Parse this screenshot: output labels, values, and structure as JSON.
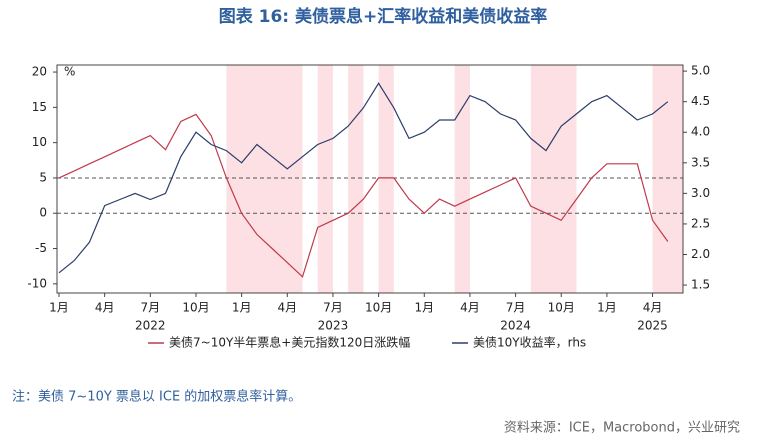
{
  "chart_data": {
    "type": "line",
    "title": "图表 16: 美债票息+汇率收益和美债收益率",
    "note": "注：美债 7~10Y 票息以 ICE 的加权票息率计算。",
    "source": "资料来源：ICE，Macrobond，兴业研究",
    "y_unit": "%",
    "y2_unit": "%",
    "x": [
      "2022-01",
      "2022-02",
      "2022-03",
      "2022-04",
      "2022-05",
      "2022-06",
      "2022-07",
      "2022-08",
      "2022-09",
      "2022-10",
      "2022-11",
      "2022-12",
      "2023-01",
      "2023-02",
      "2023-03",
      "2023-04",
      "2023-05",
      "2023-06",
      "2023-07",
      "2023-08",
      "2023-09",
      "2023-10",
      "2023-11",
      "2023-12",
      "2024-01",
      "2024-02",
      "2024-03",
      "2024-04",
      "2024-05",
      "2024-06",
      "2024-07",
      "2024-08",
      "2024-09",
      "2024-10",
      "2024-11",
      "2024-12",
      "2025-01",
      "2025-02",
      "2025-03",
      "2025-04",
      "2025-05"
    ],
    "series": [
      {
        "name": "美债7~10Y半年票息+美元指数120日涨跌幅",
        "color": "#c0394b",
        "axis": "y",
        "values": [
          5,
          6,
          7,
          8,
          9,
          10,
          11,
          9,
          13,
          14,
          11,
          5,
          0,
          -3,
          -5,
          -7,
          -9,
          -2,
          -1,
          0,
          2,
          5,
          5,
          2,
          0,
          2,
          1,
          2,
          3,
          4,
          5,
          1,
          0,
          -1,
          2,
          5,
          7,
          7,
          7,
          -1,
          -4
        ]
      },
      {
        "name": "美债10Y收益率，rhs",
        "color": "#2c3e6b",
        "axis": "y2",
        "values": [
          1.7,
          1.9,
          2.2,
          2.8,
          2.9,
          3.0,
          2.9,
          3.0,
          3.6,
          4.0,
          3.8,
          3.7,
          3.5,
          3.8,
          3.6,
          3.4,
          3.6,
          3.8,
          3.9,
          4.1,
          4.4,
          4.8,
          4.4,
          3.9,
          4.0,
          4.2,
          4.2,
          4.6,
          4.5,
          4.3,
          4.2,
          3.9,
          3.7,
          4.1,
          4.3,
          4.5,
          4.6,
          4.4,
          4.2,
          4.3,
          4.5
        ]
      }
    ],
    "xlim": [
      "2022-01",
      "2025-06"
    ],
    "xticks": [
      {
        "value": "2022-01",
        "label": "1月"
      },
      {
        "value": "2022-04",
        "label": "4月"
      },
      {
        "value": "2022-07",
        "label": "7月"
      },
      {
        "value": "2022-10",
        "label": "10月"
      },
      {
        "value": "2023-01",
        "label": "1月"
      },
      {
        "value": "2023-04",
        "label": "4月"
      },
      {
        "value": "2023-07",
        "label": "7月"
      },
      {
        "value": "2023-10",
        "label": "10月"
      },
      {
        "value": "2024-01",
        "label": "1月"
      },
      {
        "value": "2024-04",
        "label": "4月"
      },
      {
        "value": "2024-07",
        "label": "7月"
      },
      {
        "value": "2024-10",
        "label": "10月"
      },
      {
        "value": "2025-01",
        "label": "1月"
      },
      {
        "value": "2025-04",
        "label": "4月"
      }
    ],
    "year_labels": [
      {
        "value": "2022-07",
        "label": "2022"
      },
      {
        "value": "2023-07",
        "label": "2023"
      },
      {
        "value": "2024-07",
        "label": "2024"
      },
      {
        "value": "2025-04",
        "label": "2025"
      }
    ],
    "ylim": [
      -11.3,
      21
    ],
    "yticks": [
      20,
      15,
      10,
      5,
      0,
      -5,
      -10
    ],
    "y2lim": [
      1.37,
      5.1
    ],
    "y2ticks": [
      {
        "value": 5,
        "label": "5.0"
      },
      4.5,
      {
        "value": 4,
        "label": "4.0"
      },
      3.5,
      {
        "value": 3,
        "label": "3.0"
      },
      2.5,
      {
        "value": 2,
        "label": "2.0"
      },
      1.5
    ],
    "reference_lines": [
      5,
      0
    ],
    "shaded_ranges": [
      [
        "2022-12",
        "2023-01"
      ],
      [
        "2023-01",
        "2023-05"
      ],
      [
        "2023-06",
        "2023-07"
      ],
      [
        "2023-08",
        "2023-09"
      ],
      [
        "2023-10",
        "2023-11"
      ],
      [
        "2024-03",
        "2024-04"
      ],
      [
        "2024-08",
        "2024-09"
      ],
      [
        "2024-09",
        "2024-11"
      ],
      [
        "2025-04",
        "2025-06"
      ]
    ],
    "shade_color": "#fde0e3"
  }
}
